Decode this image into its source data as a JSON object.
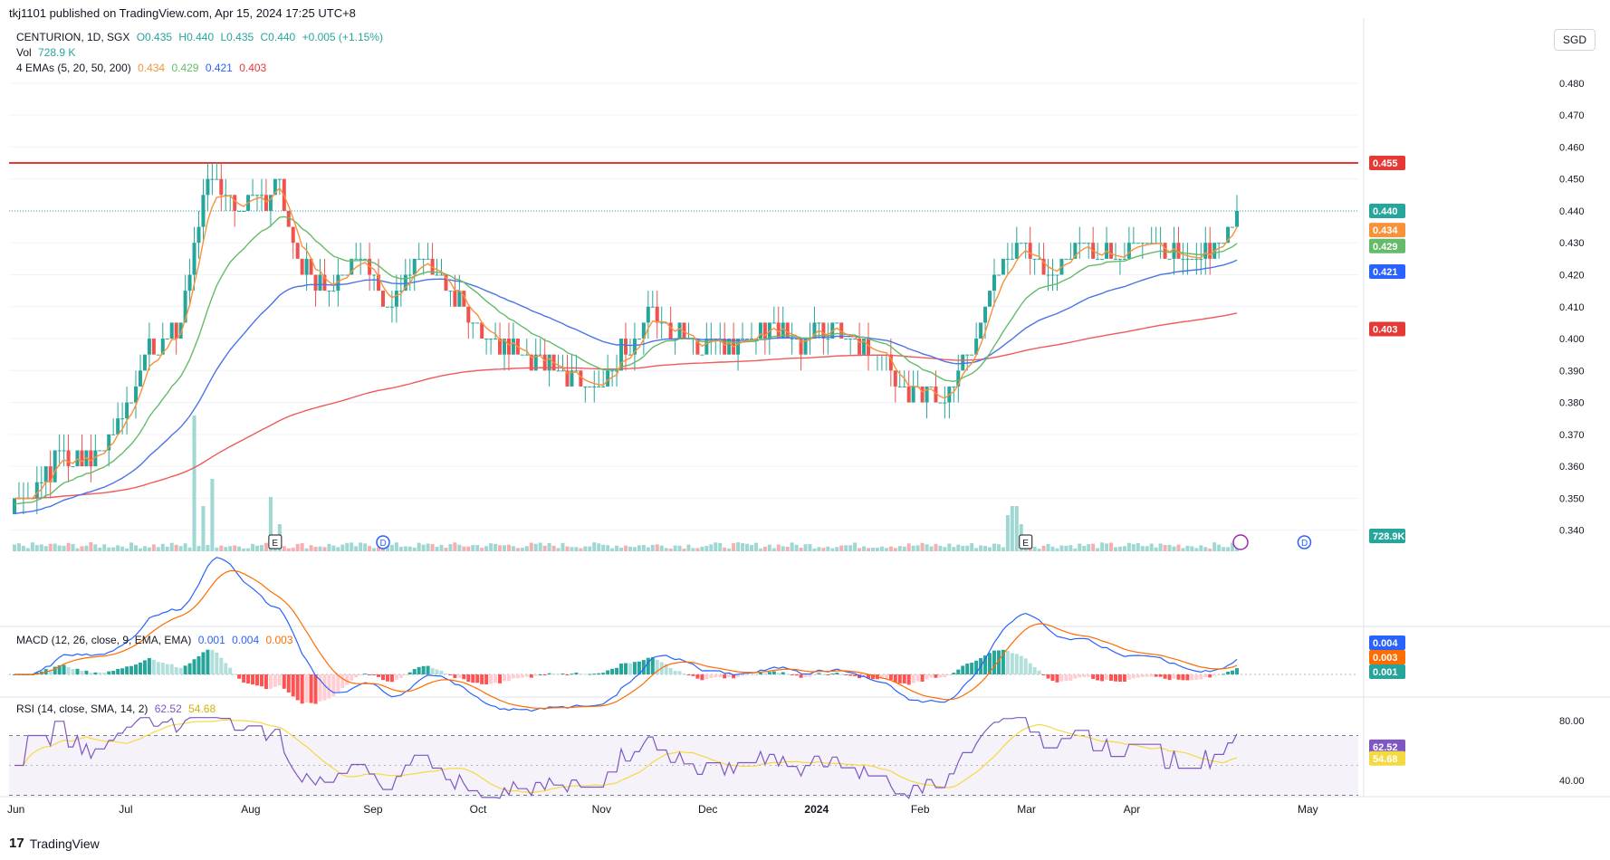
{
  "header": {
    "published": "tkj1101 published on TradingView.com, Apr 15, 2024 17:25 UTC+8"
  },
  "legend": {
    "symbol": "CENTURION, 1D, SGX",
    "o": "O0.435",
    "h": "H0.440",
    "l": "L0.435",
    "c": "C0.440",
    "chg": "+0.005 (+1.15%)",
    "vol_label": "Vol",
    "vol_value": "728.9 K",
    "ema_label": "4 EMAs (5, 20, 50, 200)",
    "ema_values": [
      "0.434",
      "0.429",
      "0.421",
      "0.403"
    ],
    "macd_label": "MACD (12, 26, close, 9, EMA, EMA)",
    "macd_values": [
      "0.001",
      "0.004",
      "0.003"
    ],
    "rsi_label": "RSI (14, close, SMA, 14, 2)",
    "rsi_values": [
      "62.52",
      "54.68"
    ]
  },
  "currency": "SGD",
  "footer": {
    "brand": "TradingView"
  },
  "colors": {
    "up": "#26a69a",
    "down": "#ef5350",
    "ema5": "#f7923a",
    "ema20": "#66bb6a",
    "ema50": "#4c74e6",
    "ema200": "#f05a5a",
    "hline": "#e53935",
    "rsi": "#7e57c2",
    "rsi_ma": "#f5d940",
    "macd": "#2962ff",
    "signal": "#ff6d00"
  },
  "chart_data": {
    "type": "candlestick",
    "price_axis": {
      "ticks": [
        "0.480",
        "0.470",
        "0.460",
        "0.450",
        "0.440",
        "0.430",
        "0.420",
        "0.410",
        "0.400",
        "0.390",
        "0.380",
        "0.370",
        "0.360",
        "0.350",
        "0.340"
      ],
      "range": [
        0.3365,
        0.4845
      ]
    },
    "x_axis_labels": [
      "Jun",
      "Jul",
      "Aug",
      "Sep",
      "Oct",
      "Nov",
      "Dec",
      "2024",
      "Feb",
      "Mar",
      "Apr",
      "May"
    ],
    "horizontal_line": 0.455,
    "last_price": 0.44,
    "price_labels": [
      {
        "text": "0.455",
        "value": 0.455,
        "color": "#e53935"
      },
      {
        "text": "0.440",
        "value": 0.44,
        "color": "#26a69a"
      },
      {
        "text": "0.434",
        "value": 0.434,
        "color": "#f7923a"
      },
      {
        "text": "0.429",
        "value": 0.429,
        "color": "#66bb6a"
      },
      {
        "text": "0.421",
        "value": 0.421,
        "color": "#2962ff"
      },
      {
        "text": "0.403",
        "value": 0.403,
        "color": "#e53935"
      }
    ],
    "volume_label": {
      "text": "728.9K",
      "color": "#26a69a"
    },
    "macd_labels": [
      {
        "text": "0.004",
        "value": 0.004,
        "color": "#2962ff"
      },
      {
        "text": "0.003",
        "value": 0.003,
        "color": "#ff6d00"
      },
      {
        "text": "0.001",
        "value": 0.001,
        "color": "#26a69a"
      }
    ],
    "rsi_axis": {
      "ticks": [
        "80.00",
        "40.00"
      ],
      "range": [
        25,
        85
      ],
      "bands": [
        70,
        30
      ],
      "mid": 50
    },
    "rsi_labels": [
      {
        "text": "62.52",
        "value": 62.52,
        "color": "#7e57c2"
      },
      {
        "text": "54.68",
        "value": 54.68,
        "color": "#f5d940"
      }
    ],
    "events": [
      {
        "text": "E",
        "day": 58
      },
      {
        "text": "D",
        "day": 82
      },
      {
        "text": "E",
        "day": 225
      },
      {
        "text": "D",
        "day": 287
      }
    ],
    "close_anchors": [
      [
        0,
        0.35
      ],
      [
        5,
        0.355
      ],
      [
        10,
        0.363
      ],
      [
        15,
        0.362
      ],
      [
        20,
        0.367
      ],
      [
        25,
        0.38
      ],
      [
        28,
        0.39
      ],
      [
        31,
        0.396
      ],
      [
        33,
        0.4
      ],
      [
        36,
        0.4
      ],
      [
        39,
        0.42
      ],
      [
        41,
        0.436
      ],
      [
        43,
        0.45
      ],
      [
        45,
        0.449
      ],
      [
        47,
        0.445
      ],
      [
        50,
        0.44
      ],
      [
        52,
        0.445
      ],
      [
        54,
        0.447
      ],
      [
        57,
        0.444
      ],
      [
        59,
        0.449
      ],
      [
        61,
        0.436
      ],
      [
        63,
        0.425
      ],
      [
        66,
        0.42
      ],
      [
        69,
        0.414
      ],
      [
        72,
        0.419
      ],
      [
        75,
        0.423
      ],
      [
        78,
        0.425
      ],
      [
        80,
        0.42
      ],
      [
        82,
        0.411
      ],
      [
        85,
        0.414
      ],
      [
        88,
        0.421
      ],
      [
        91,
        0.425
      ],
      [
        94,
        0.421
      ],
      [
        97,
        0.414
      ],
      [
        100,
        0.408
      ],
      [
        103,
        0.405
      ],
      [
        106,
        0.4
      ],
      [
        109,
        0.4
      ],
      [
        112,
        0.395
      ],
      [
        115,
        0.39
      ],
      [
        118,
        0.39
      ],
      [
        121,
        0.392
      ],
      [
        124,
        0.39
      ],
      [
        127,
        0.387
      ],
      [
        130,
        0.383
      ],
      [
        133,
        0.39
      ],
      [
        136,
        0.397
      ],
      [
        139,
        0.4
      ],
      [
        141,
        0.41
      ],
      [
        144,
        0.405
      ],
      [
        147,
        0.4
      ],
      [
        150,
        0.4
      ],
      [
        153,
        0.395
      ],
      [
        156,
        0.4
      ],
      [
        159,
        0.4
      ],
      [
        162,
        0.398
      ],
      [
        165,
        0.4
      ],
      [
        168,
        0.403
      ],
      [
        171,
        0.403
      ],
      [
        174,
        0.4
      ],
      [
        177,
        0.4
      ],
      [
        180,
        0.402
      ],
      [
        183,
        0.404
      ],
      [
        186,
        0.4
      ],
      [
        189,
        0.398
      ],
      [
        192,
        0.396
      ],
      [
        195,
        0.392
      ],
      [
        198,
        0.387
      ],
      [
        201,
        0.384
      ],
      [
        204,
        0.384
      ],
      [
        207,
        0.381
      ],
      [
        210,
        0.39
      ],
      [
        213,
        0.395
      ],
      [
        216,
        0.41
      ],
      [
        219,
        0.42
      ],
      [
        221,
        0.424
      ],
      [
        223,
        0.43
      ],
      [
        225,
        0.43
      ],
      [
        227,
        0.425
      ],
      [
        230,
        0.42
      ],
      [
        233,
        0.424
      ],
      [
        236,
        0.428
      ],
      [
        239,
        0.43
      ],
      [
        242,
        0.425
      ],
      [
        245,
        0.426
      ],
      [
        248,
        0.428
      ],
      [
        251,
        0.43
      ],
      [
        254,
        0.428
      ],
      [
        257,
        0.425
      ],
      [
        260,
        0.424
      ],
      [
        263,
        0.425
      ],
      [
        266,
        0.426
      ],
      [
        269,
        0.43
      ],
      [
        271,
        0.437
      ],
      [
        272,
        0.44
      ]
    ],
    "volume_spikes": [
      [
        40,
        15
      ],
      [
        42,
        5
      ],
      [
        44,
        8
      ],
      [
        57,
        6
      ],
      [
        59,
        3
      ],
      [
        222,
        5
      ],
      [
        223,
        5
      ],
      [
        221,
        4
      ],
      [
        224,
        3
      ]
    ],
    "total_days": 273
  }
}
